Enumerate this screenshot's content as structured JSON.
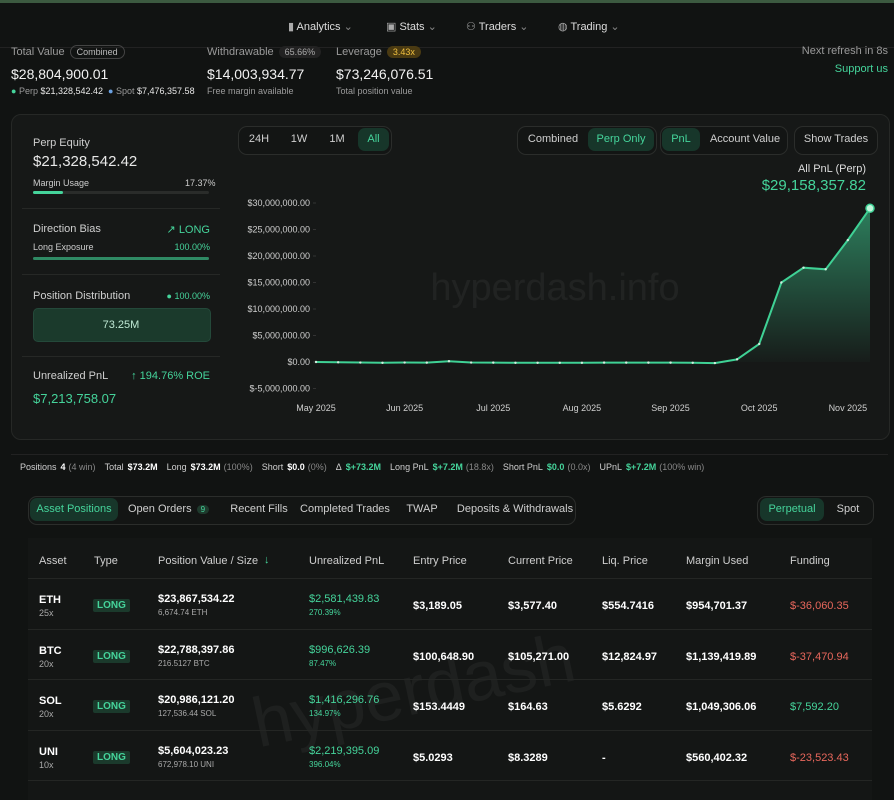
{
  "nav": [
    "Analytics",
    "Stats",
    "Traders",
    "Trading"
  ],
  "summary": {
    "total_value": {
      "label": "Total Value",
      "badge": "Combined",
      "value": "$28,804,900.01",
      "perp_label": "Perp",
      "perp": "$21,328,542.42",
      "spot_label": "Spot",
      "spot": "$7,476,357.58"
    },
    "withdrawable": {
      "label": "Withdrawable",
      "badge": "65.66%",
      "value": "$14,003,934.77",
      "sub": "Free margin available"
    },
    "leverage": {
      "label": "Leverage",
      "badge": "3.43x",
      "value": "$73,246,076.51",
      "sub": "Total position value"
    },
    "refresh": "Next refresh in 8s",
    "support": "Support us"
  },
  "left": {
    "perp_equity": {
      "label": "Perp Equity",
      "value": "$21,328,542.42",
      "sub_label": "Margin Usage",
      "sub_value": "17.37%"
    },
    "direction": {
      "label": "Direction Bias",
      "value": "LONG",
      "sub_label": "Long Exposure",
      "sub_value": "100.00%"
    },
    "distribution": {
      "label": "Position Distribution",
      "value": "100.00%",
      "bar": "73.25M"
    },
    "upnl": {
      "label": "Unrealized PnL",
      "roe": "194.76% ROE",
      "value": "$7,213,758.07"
    }
  },
  "controls": {
    "ranges": [
      "24H",
      "1W",
      "1M",
      "All"
    ],
    "modes": [
      "Combined",
      "Perp Only"
    ],
    "views": [
      "PnL",
      "Account Value"
    ],
    "show_trades": "Show Trades"
  },
  "watermark": "hyperdash.info",
  "chart_data": {
    "type": "area",
    "series_label": "All PnL (Perp)",
    "latest": "$29,158,357.82",
    "color": "#3fd195",
    "grid": false,
    "categories": [
      "May 2025",
      null,
      null,
      null,
      "Jun 2025",
      null,
      null,
      null,
      "Jul 2025",
      null,
      null,
      null,
      "Aug 2025",
      null,
      null,
      null,
      "Sep 2025",
      null,
      null,
      null,
      "Oct 2025",
      null,
      null,
      null,
      "Nov 2025",
      null
    ],
    "values": [
      0,
      -50000,
      -100000,
      -150000,
      -100000,
      -120000,
      150000,
      -100000,
      -120000,
      -150000,
      -150000,
      -150000,
      -150000,
      -120000,
      -120000,
      -120000,
      -120000,
      -150000,
      -200000,
      500000,
      3400000,
      15000000,
      17800000,
      17500000,
      23000000,
      29000000
    ],
    "ylim": [
      -5000000,
      30000000
    ],
    "yticks": [
      {
        "value": -5000000,
        "label": "$-5,000,000.00"
      },
      {
        "value": 0,
        "label": "$0.00"
      },
      {
        "value": 5000000,
        "label": "$5,000,000.00"
      },
      {
        "value": 10000000,
        "label": "$10,000,000.00"
      },
      {
        "value": 15000000,
        "label": "$15,000,000.00"
      },
      {
        "value": 20000000,
        "label": "$20,000,000.00"
      },
      {
        "value": 25000000,
        "label": "$25,000,000.00"
      },
      {
        "value": 30000000,
        "label": "$30,000,000.00"
      }
    ]
  },
  "positions_bar": [
    {
      "label": "Positions",
      "value": "4",
      "note": "(4 win)"
    },
    {
      "label": "Total",
      "value": "$73.2M"
    },
    {
      "label": "Long",
      "value": "$73.2M",
      "note": "(100%)"
    },
    {
      "label": "Short",
      "value": "$0.0",
      "note": "(0%)"
    },
    {
      "label": "Δ",
      "value": "$+73.2M"
    },
    {
      "label": "Long PnL",
      "value": "$+7.2M",
      "note": "(18.8x)"
    },
    {
      "label": "Short PnL",
      "value": "$0.0",
      "note": "(0.0x)"
    },
    {
      "label": "UPnL",
      "value": "$+7.2M",
      "note": "(100% win)"
    }
  ],
  "tabs": [
    "Asset Positions",
    "Open Orders",
    "Recent Fills",
    "Completed Trades",
    "TWAP",
    "Deposits & Withdrawals"
  ],
  "open_orders_count": "9",
  "market_tabs": [
    "Perpetual",
    "Spot"
  ],
  "table_watermark": "hyperdash",
  "table": {
    "headers": [
      "Asset",
      "Type",
      "Position Value / Size",
      "Unrealized PnL",
      "Entry Price",
      "Current Price",
      "Liq. Price",
      "Margin Used",
      "Funding"
    ],
    "rows": [
      {
        "asset": "ETH",
        "leverage": "25x",
        "type": "LONG",
        "value": "$23,867,534.22",
        "size": "6,674.74 ETH",
        "pnl": "$2,581,439.83",
        "roe": "270.39%",
        "entry": "$3,189.05",
        "current": "$3,577.40",
        "liq": "$554.7416",
        "margin": "$954,701.37",
        "funding": "$-36,060.35"
      },
      {
        "asset": "BTC",
        "leverage": "20x",
        "type": "LONG",
        "value": "$22,788,397.86",
        "size": "216.5127 BTC",
        "pnl": "$996,626.39",
        "roe": "87.47%",
        "entry": "$100,648.90",
        "current": "$105,271.00",
        "liq": "$12,824.97",
        "margin": "$1,139,419.89",
        "funding": "$-37,470.94"
      },
      {
        "asset": "SOL",
        "leverage": "20x",
        "type": "LONG",
        "value": "$20,986,121.20",
        "size": "127,536.44 SOL",
        "pnl": "$1,416,296.76",
        "roe": "134.97%",
        "entry": "$153.4449",
        "current": "$164.63",
        "liq": "$5.6292",
        "margin": "$1,049,306.06",
        "funding": "$7,592.20"
      },
      {
        "asset": "UNI",
        "leverage": "10x",
        "type": "LONG",
        "value": "$5,604,023.23",
        "size": "672,978.10 UNI",
        "pnl": "$2,219,395.09",
        "roe": "396.04%",
        "entry": "$5.0293",
        "current": "$8.3289",
        "liq": "-",
        "margin": "$560,402.32",
        "funding": "$-23,523.43"
      }
    ]
  }
}
